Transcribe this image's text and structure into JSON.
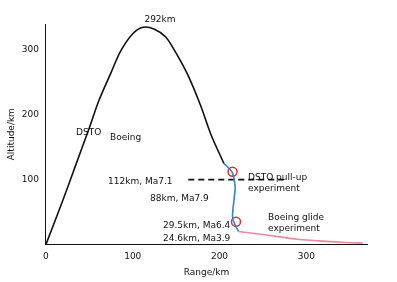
{
  "chart_data": {
    "type": "line",
    "x_label": "Range/km",
    "y_label": "Altitude/km",
    "xlim": [
      0,
      370
    ],
    "ylim": [
      0,
      340
    ],
    "xticks": [
      0,
      100,
      200,
      300
    ],
    "yticks": [
      100,
      200,
      300
    ],
    "grid": false,
    "series": [
      {
        "color": "#111111",
        "line_style": "solid",
        "x": [
          0,
          20,
          35,
          50,
          61,
          75,
          86,
          100,
          112,
          125,
          138,
          150,
          164,
          178,
          190,
          205
        ],
        "values": [
          0,
          70,
          125,
          180,
          222,
          265,
          298,
          325,
          335,
          332,
          320,
          295,
          260,
          215,
          170,
          125
        ]
      },
      {
        "color": "#3a7fc1",
        "line_style": "solid",
        "x": [
          205,
          211,
          215,
          218,
          217,
          215,
          218,
          222
        ],
        "values": [
          125,
          117,
          110,
          90,
          72,
          42,
          30,
          20
        ]
      },
      {
        "color": "#e88a9a",
        "line_style": "solid",
        "x": [
          222,
          245,
          267,
          290,
          319,
          345,
          365
        ],
        "values": [
          20,
          16,
          12,
          8,
          5,
          3,
          2
        ]
      },
      {
        "color": "#111111",
        "line_style": "dashed",
        "x": [
          164,
          274
        ],
        "values": [
          100,
          100
        ]
      },
      {
        "color": "#d9342b",
        "marker": "circle",
        "line_style": "none",
        "x": [
          215,
          219
        ],
        "values": [
          112,
          35
        ]
      }
    ],
    "annotations": [
      "292km",
      "DSTO",
      "Boeing",
      "112km, Ma7.1",
      "88km, Ma7.9",
      "DSTO pull-up experiment",
      "29.5km, Ma6.4",
      "24.6km, Ma3.9",
      "Boeing glide experiment"
    ]
  }
}
